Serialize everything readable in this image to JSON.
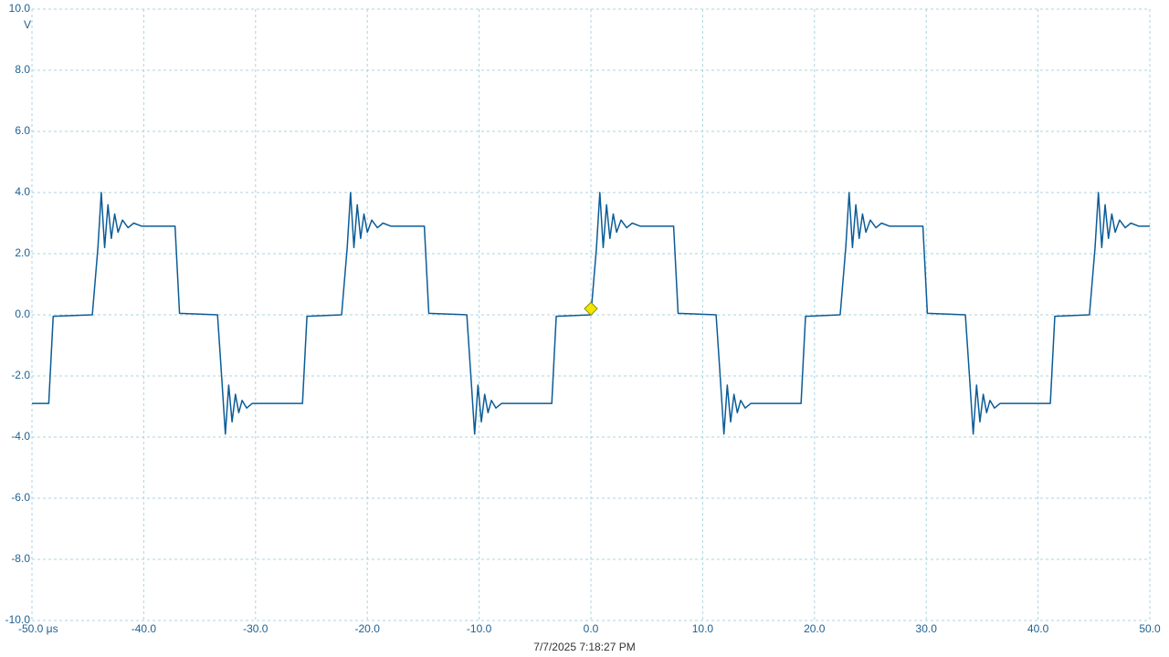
{
  "chart_data": {
    "type": "line",
    "y_unit": "V",
    "footer": "7/7/2025 7:18:27 PM",
    "color": "#0b5c97",
    "trigger_color": "#f2e600",
    "trigger": {
      "x": 0,
      "y": 0.2
    },
    "xlim": [
      -50,
      50
    ],
    "ylim": [
      -10,
      10
    ],
    "grid": true,
    "xticks": [
      {
        "value": -50,
        "label": "-50.0 μs"
      },
      {
        "value": -40,
        "label": "-40.0"
      },
      {
        "value": -30,
        "label": "-30.0"
      },
      {
        "value": -20,
        "label": "-20.0"
      },
      {
        "value": -10,
        "label": "-10.0"
      },
      {
        "value": 0,
        "label": "0.0"
      },
      {
        "value": 10,
        "label": "10.0"
      },
      {
        "value": 20,
        "label": "20.0"
      },
      {
        "value": 30,
        "label": "30.0"
      },
      {
        "value": 40,
        "label": "40.0"
      },
      {
        "value": 50,
        "label": "50.0"
      }
    ],
    "yticks": [
      {
        "value": 10,
        "label": "10.0"
      },
      {
        "value": 8,
        "label": "8.0"
      },
      {
        "value": 6,
        "label": "6.0"
      },
      {
        "value": 4,
        "label": "4.0"
      },
      {
        "value": 2,
        "label": "2.0"
      },
      {
        "value": 0,
        "label": "0.0"
      },
      {
        "value": -2,
        "label": "-2.0"
      },
      {
        "value": -4,
        "label": "-4.0"
      },
      {
        "value": -6,
        "label": "-6.0"
      },
      {
        "value": -8,
        "label": "-8.0"
      },
      {
        "value": -10,
        "label": "-10.0"
      }
    ],
    "x": [
      -50,
      -48.5,
      -48.1,
      -44.6,
      -44.1,
      -43.8,
      -43.5,
      -43.2,
      -42.9,
      -42.6,
      -42.3,
      -41.9,
      -41.4,
      -40.9,
      -40.2,
      -37.2,
      -36.8,
      -33.4,
      -33.0,
      -32.7,
      -32.4,
      -32.1,
      -31.8,
      -31.5,
      -31.2,
      -30.8,
      -30.3,
      -25.8,
      -25.4,
      -22.3,
      -21.8,
      -21.5,
      -21.2,
      -20.9,
      -20.6,
      -20.3,
      -20.0,
      -19.6,
      -19.1,
      -18.6,
      -17.9,
      -14.9,
      -14.5,
      -11.1,
      -10.7,
      -10.4,
      -10.1,
      -9.8,
      -9.5,
      -9.2,
      -8.9,
      -8.5,
      -8.0,
      -3.5,
      -3.1,
      0.0,
      0.5,
      0.8,
      1.1,
      1.4,
      1.7,
      2.0,
      2.3,
      2.7,
      3.2,
      3.7,
      4.4,
      7.4,
      7.8,
      11.2,
      11.6,
      11.9,
      12.2,
      12.5,
      12.8,
      13.1,
      13.4,
      13.8,
      14.3,
      18.8,
      19.2,
      22.3,
      22.8,
      23.1,
      23.4,
      23.7,
      24.0,
      24.3,
      24.6,
      25.0,
      25.5,
      26.0,
      26.7,
      29.7,
      30.1,
      33.5,
      33.9,
      34.2,
      34.5,
      34.8,
      35.1,
      35.4,
      35.7,
      36.1,
      36.6,
      41.1,
      41.5,
      44.6,
      45.1,
      45.4,
      45.7,
      46.0,
      46.3,
      46.6,
      46.9,
      47.3,
      47.8,
      48.3,
      49.0,
      50.0
    ],
    "values": [
      -2.9,
      -2.9,
      -0.05,
      0.0,
      2.2,
      4.0,
      2.2,
      3.6,
      2.5,
      3.3,
      2.7,
      3.1,
      2.85,
      3.0,
      2.9,
      2.9,
      0.05,
      0.0,
      -2.2,
      -3.9,
      -2.3,
      -3.5,
      -2.6,
      -3.2,
      -2.8,
      -3.05,
      -2.9,
      -2.9,
      -0.05,
      0.0,
      2.2,
      4.0,
      2.2,
      3.6,
      2.5,
      3.3,
      2.7,
      3.1,
      2.85,
      3.0,
      2.9,
      2.9,
      0.05,
      0.0,
      -2.2,
      -3.9,
      -2.3,
      -3.5,
      -2.6,
      -3.2,
      -2.8,
      -3.05,
      -2.9,
      -2.9,
      -0.05,
      0.0,
      2.2,
      4.0,
      2.2,
      3.6,
      2.5,
      3.3,
      2.7,
      3.1,
      2.85,
      3.0,
      2.9,
      2.9,
      0.05,
      0.0,
      -2.2,
      -3.9,
      -2.3,
      -3.5,
      -2.6,
      -3.2,
      -2.8,
      -3.05,
      -2.9,
      -2.9,
      -0.05,
      0.0,
      2.2,
      4.0,
      2.2,
      3.6,
      2.5,
      3.3,
      2.7,
      3.1,
      2.85,
      3.0,
      2.9,
      2.9,
      0.05,
      0.0,
      -2.2,
      -3.9,
      -2.3,
      -3.5,
      -2.6,
      -3.2,
      -2.8,
      -3.05,
      -2.9,
      -2.9,
      -0.05,
      0.0,
      2.2,
      4.0,
      2.2,
      3.6,
      2.5,
      3.3,
      2.7,
      3.1,
      2.85,
      3.0,
      2.9,
      2.9
    ]
  }
}
